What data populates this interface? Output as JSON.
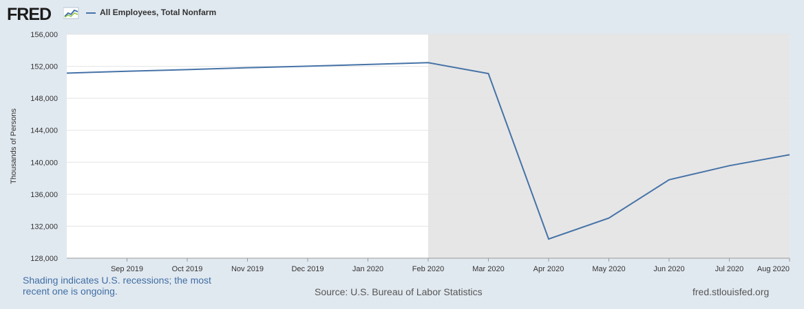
{
  "header": {
    "logo_text": "FRED",
    "series_label": "All Employees, Total Nonfarm"
  },
  "footer": {
    "recession_note": "Shading indicates U.S. recessions; the most recent one is ongoing.",
    "source": "Source: U.S. Bureau of Labor Statistics",
    "site": "fred.stlouisfed.org"
  },
  "colors": {
    "line": "#4572a7",
    "recession_shade": "#e6e6e6",
    "plot_background": "#ffffff",
    "page_background": "#e1e9f0"
  },
  "chart_data": {
    "type": "line",
    "title": "",
    "ylabel": "Thousands of Persons",
    "xlabel": "",
    "ylim": [
      128000,
      156000
    ],
    "yticks": [
      128000,
      132000,
      136000,
      140000,
      144000,
      148000,
      152000,
      156000
    ],
    "ytick_labels": [
      "128,000",
      "132,000",
      "136,000",
      "140,000",
      "144,000",
      "148,000",
      "152,000",
      "156,000"
    ],
    "x_tick_labels": [
      "Sep 2019",
      "Oct 2019",
      "Nov 2019",
      "Dec 2019",
      "Jan 2020",
      "Feb 2020",
      "Mar 2020",
      "Apr 2020",
      "May 2020",
      "Jun 2020",
      "Jul 2020",
      "Aug 2020"
    ],
    "x": [
      "2019-08",
      "2019-09",
      "2019-10",
      "2019-11",
      "2019-12",
      "2020-01",
      "2020-02",
      "2020-03",
      "2020-04",
      "2020-05",
      "2020-06",
      "2020-07",
      "2020-08"
    ],
    "series": [
      {
        "name": "All Employees, Total Nonfarm",
        "values": [
          151150,
          151380,
          151590,
          151820,
          152020,
          152230,
          152460,
          151090,
          130400,
          133020,
          137810,
          139570,
          140940
        ]
      }
    ],
    "recession_shading": {
      "start": "2020-02",
      "end": "2020-08"
    },
    "grid": "horizontal",
    "legend_position": "top-left"
  }
}
